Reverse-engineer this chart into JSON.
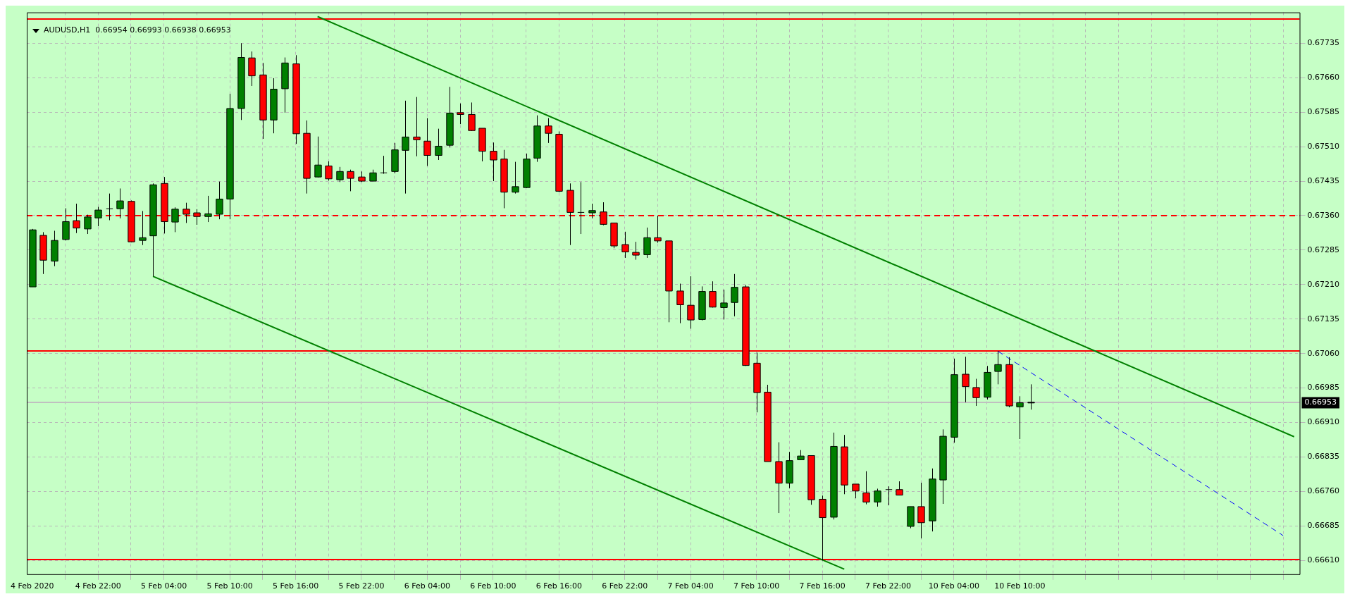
{
  "chart_data": {
    "type": "candlestick",
    "title": "AUDUSD,H1  0.66954 0.66993 0.66938 0.66953",
    "categories": [
      "4 Feb 2020",
      null,
      null,
      null,
      null,
      null,
      "4 Feb 22:00",
      null,
      null,
      null,
      null,
      null,
      "5 Feb 04:00",
      null,
      null,
      null,
      null,
      null,
      "5 Feb 10:00",
      null,
      null,
      null,
      null,
      null,
      "5 Feb 16:00",
      null,
      null,
      null,
      null,
      null,
      "5 Feb 22:00",
      null,
      null,
      null,
      null,
      null,
      "6 Feb 04:00",
      null,
      null,
      null,
      null,
      null,
      "6 Feb 10:00",
      null,
      null,
      null,
      null,
      null,
      "6 Feb 16:00",
      null,
      null,
      null,
      null,
      null,
      "6 Feb 22:00",
      null,
      null,
      null,
      null,
      null,
      "7 Feb 04:00",
      null,
      null,
      null,
      null,
      null,
      "7 Feb 10:00",
      null,
      null,
      null,
      null,
      null,
      "7 Feb 16:00",
      null,
      null,
      null,
      null,
      null,
      "7 Feb 22:00",
      null,
      null,
      null,
      null,
      null,
      "10 Feb 04:00",
      null,
      null,
      null,
      null,
      null,
      "10 Feb 10:00",
      null,
      null,
      null,
      null,
      null,
      null,
      null,
      null,
      null,
      null,
      null,
      null,
      null,
      null,
      null,
      null,
      null,
      null,
      null,
      null,
      null,
      null,
      null,
      null,
      null
    ],
    "colors": [
      "#008000",
      "#ff0000",
      "#008000",
      "#008000",
      "#ff0000",
      "#008000",
      "#008000",
      "#000000",
      "#008000",
      "#ff0000",
      "#008000",
      "#008000",
      "#ff0000",
      "#008000",
      "#ff0000",
      "#ff0000",
      "#008000",
      "#008000",
      "#008000",
      "#008000",
      "#ff0000",
      "#ff0000",
      "#008000",
      "#008000",
      "#ff0000",
      "#ff0000",
      "#008000",
      "#ff0000",
      "#008000",
      "#ff0000",
      "#ff0000",
      "#008000",
      "#000000",
      "#008000",
      "#008000",
      "#ff0000",
      "#ff0000",
      "#008000",
      "#008000",
      "#ff0000",
      "#ff0000",
      "#ff0000",
      "#ff0000",
      "#ff0000",
      "#008000",
      "#008000",
      "#008000",
      "#ff0000",
      "#ff0000",
      "#ff0000",
      "#000000",
      "#008000",
      "#ff0000",
      "#ff0000",
      "#ff0000",
      "#ff0000",
      "#008000",
      "#ff0000",
      "#ff0000",
      "#ff0000",
      "#ff0000",
      "#008000",
      "#ff0000",
      "#008000",
      "#008000",
      "#ff0000",
      "#ff0000",
      "#ff0000",
      "#ff0000",
      "#008000",
      "#008000",
      "#ff0000",
      "#ff0000",
      "#008000",
      "#ff0000",
      "#ff0000",
      "#ff0000",
      "#008000",
      "#000000",
      "#ff0000",
      "#008000",
      "#ff0000",
      "#008000",
      "#008000",
      "#008000",
      "#ff0000",
      "#ff0000",
      "#008000",
      "#008000",
      "#ff0000",
      "#008000",
      "#000000",
      null,
      null,
      null,
      null,
      null,
      null,
      null,
      null,
      null,
      null,
      null,
      null,
      null,
      null,
      null,
      null,
      null,
      null,
      null,
      null,
      null,
      null,
      null,
      null
    ],
    "ohlc": [
      [
        0.67205,
        0.67331,
        0.67205,
        0.67329
      ],
      [
        0.67317,
        0.67324,
        0.67233,
        0.67263
      ],
      [
        0.67261,
        0.67327,
        0.6725,
        0.67306
      ],
      [
        0.67308,
        0.67376,
        0.67306,
        0.67347
      ],
      [
        0.67349,
        0.67386,
        0.67322,
        0.67333
      ],
      [
        0.67331,
        0.67362,
        0.6732,
        0.67357
      ],
      [
        0.67355,
        0.67379,
        0.67337,
        0.67372
      ],
      [
        0.67375,
        0.67408,
        0.6735,
        0.67375
      ],
      [
        0.67375,
        0.67419,
        0.67354,
        0.67392
      ],
      [
        0.67391,
        0.67393,
        0.67302,
        0.67303
      ],
      [
        0.67306,
        0.6737,
        0.67296,
        0.67312
      ],
      [
        0.67316,
        0.6743,
        0.67228,
        0.67427
      ],
      [
        0.6743,
        0.67444,
        0.67321,
        0.67347
      ],
      [
        0.67346,
        0.67378,
        0.67324,
        0.67374
      ],
      [
        0.67374,
        0.67388,
        0.67344,
        0.67363
      ],
      [
        0.67366,
        0.67374,
        0.6734,
        0.67358
      ],
      [
        0.67358,
        0.67403,
        0.67346,
        0.67364
      ],
      [
        0.67363,
        0.67434,
        0.67352,
        0.67396
      ],
      [
        0.67396,
        0.67625,
        0.67352,
        0.67593
      ],
      [
        0.67593,
        0.67735,
        0.67568,
        0.67704
      ],
      [
        0.67703,
        0.67717,
        0.67642,
        0.67664
      ],
      [
        0.67666,
        0.67692,
        0.67527,
        0.67568
      ],
      [
        0.67568,
        0.67659,
        0.67539,
        0.67635
      ],
      [
        0.67636,
        0.67704,
        0.67584,
        0.67692
      ],
      [
        0.6769,
        0.67709,
        0.67516,
        0.67538
      ],
      [
        0.67539,
        0.67567,
        0.67408,
        0.67441
      ],
      [
        0.67444,
        0.67532,
        0.67443,
        0.6747
      ],
      [
        0.67468,
        0.67478,
        0.67436,
        0.6744
      ],
      [
        0.67438,
        0.67466,
        0.67433,
        0.67456
      ],
      [
        0.67456,
        0.6746,
        0.67413,
        0.67441
      ],
      [
        0.67444,
        0.67456,
        0.67433,
        0.67435
      ],
      [
        0.67435,
        0.6746,
        0.67435,
        0.67453
      ],
      [
        0.67453,
        0.6749,
        0.67451,
        0.67453
      ],
      [
        0.67456,
        0.67518,
        0.67452,
        0.67503
      ],
      [
        0.67502,
        0.6761,
        0.67408,
        0.67531
      ],
      [
        0.67531,
        0.67618,
        0.67489,
        0.67525
      ],
      [
        0.67522,
        0.67572,
        0.67468,
        0.67491
      ],
      [
        0.67491,
        0.67549,
        0.67481,
        0.67511
      ],
      [
        0.67513,
        0.6764,
        0.67508,
        0.67583
      ],
      [
        0.67584,
        0.67604,
        0.67559,
        0.6758
      ],
      [
        0.6758,
        0.67606,
        0.67544,
        0.67545
      ],
      [
        0.6755,
        0.6755,
        0.67478,
        0.675
      ],
      [
        0.675,
        0.67519,
        0.67435,
        0.67481
      ],
      [
        0.67483,
        0.67503,
        0.67376,
        0.67411
      ],
      [
        0.67411,
        0.67477,
        0.67408,
        0.67423
      ],
      [
        0.67421,
        0.67495,
        0.6742,
        0.67483
      ],
      [
        0.67485,
        0.67578,
        0.67477,
        0.67555
      ],
      [
        0.67555,
        0.67572,
        0.67518,
        0.67539
      ],
      [
        0.67537,
        0.67543,
        0.67411,
        0.67413
      ],
      [
        0.67415,
        0.6743,
        0.67296,
        0.67367
      ],
      [
        0.67367,
        0.67433,
        0.6732,
        0.67367
      ],
      [
        0.67366,
        0.67386,
        0.67354,
        0.67371
      ],
      [
        0.67368,
        0.67389,
        0.67339,
        0.67341
      ],
      [
        0.67344,
        0.67344,
        0.67289,
        0.67294
      ],
      [
        0.67297,
        0.67325,
        0.67268,
        0.67281
      ],
      [
        0.6728,
        0.67303,
        0.67264,
        0.67274
      ],
      [
        0.67275,
        0.67334,
        0.67268,
        0.67312
      ],
      [
        0.67312,
        0.6736,
        0.67301,
        0.67305
      ],
      [
        0.67305,
        0.67305,
        0.67128,
        0.67196
      ],
      [
        0.67196,
        0.67212,
        0.67126,
        0.67166
      ],
      [
        0.67165,
        0.67228,
        0.67114,
        0.67133
      ],
      [
        0.67134,
        0.67206,
        0.67132,
        0.67195
      ],
      [
        0.67195,
        0.67217,
        0.6716,
        0.67161
      ],
      [
        0.6716,
        0.67199,
        0.67134,
        0.6717
      ],
      [
        0.67171,
        0.67233,
        0.67141,
        0.67204
      ],
      [
        0.67205,
        0.67209,
        0.67033,
        0.67034
      ],
      [
        0.67039,
        0.67062,
        0.66932,
        0.66975
      ],
      [
        0.66976,
        0.66992,
        0.66825,
        0.66825
      ],
      [
        0.66825,
        0.66867,
        0.66713,
        0.66778
      ],
      [
        0.66778,
        0.66846,
        0.66767,
        0.66827
      ],
      [
        0.66829,
        0.6685,
        0.66829,
        0.66837
      ],
      [
        0.66838,
        0.66838,
        0.66731,
        0.66742
      ],
      [
        0.66743,
        0.66751,
        0.6661,
        0.66703
      ],
      [
        0.66704,
        0.66888,
        0.66699,
        0.66858
      ],
      [
        0.66857,
        0.66883,
        0.66754,
        0.66774
      ],
      [
        0.66776,
        0.66776,
        0.66745,
        0.66761
      ],
      [
        0.66757,
        0.66804,
        0.66732,
        0.66737
      ],
      [
        0.66737,
        0.66766,
        0.66727,
        0.66761
      ],
      [
        0.66764,
        0.66771,
        0.6673,
        0.66764
      ],
      [
        0.66764,
        0.66782,
        0.66752,
        0.66752
      ],
      [
        0.66684,
        0.66727,
        0.6668,
        0.66727
      ],
      [
        0.66727,
        0.66779,
        0.66658,
        0.66692
      ],
      [
        0.66696,
        0.6681,
        0.66673,
        0.66787
      ],
      [
        0.66785,
        0.66895,
        0.66733,
        0.6688
      ],
      [
        0.66878,
        0.67049,
        0.66866,
        0.67014
      ],
      [
        0.67015,
        0.67053,
        0.66954,
        0.66988
      ],
      [
        0.66986,
        0.67005,
        0.66946,
        0.66964
      ],
      [
        0.66965,
        0.67033,
        0.6696,
        0.67019
      ],
      [
        0.67021,
        0.67065,
        0.66993,
        0.67036
      ],
      [
        0.67036,
        0.67052,
        0.66943,
        0.66946
      ],
      [
        0.66944,
        0.66967,
        0.66874,
        0.66953
      ],
      [
        0.66954,
        0.66993,
        0.66938,
        0.66953
      ],
      null,
      null,
      null,
      null,
      null,
      null,
      null,
      null,
      null,
      null,
      null,
      null,
      null,
      null,
      null,
      null,
      null,
      null,
      null,
      null,
      null,
      null,
      null,
      null
    ],
    "series": [
      {
        "type": "line",
        "color": "#008000",
        "values": [
          null,
          null,
          null,
          null,
          null,
          null,
          null,
          null,
          null,
          null,
          null,
          null,
          null,
          null,
          null,
          null,
          null,
          null,
          null,
          null,
          null,
          null,
          null,
          null,
          null,
          null,
          0.67793,
          null,
          null,
          null,
          null,
          null,
          null,
          null,
          null,
          null,
          null,
          null,
          null,
          null,
          null,
          null,
          null,
          null,
          null,
          null,
          null,
          null,
          null,
          null,
          null,
          null,
          null,
          null,
          null,
          null,
          null,
          null,
          null,
          null,
          null,
          null,
          null,
          null,
          null,
          null,
          null,
          null,
          null,
          null,
          null,
          null,
          null,
          null,
          null,
          null,
          null,
          null,
          null,
          null,
          null,
          null,
          null,
          null,
          null,
          null,
          null,
          null,
          null,
          null,
          null,
          null,
          null,
          null,
          null,
          null,
          null,
          null,
          null,
          null,
          null,
          null,
          null,
          null,
          null,
          null,
          null,
          null,
          null,
          null,
          null,
          null,
          null,
          null,
          null,
          0.66879
        ]
      },
      {
        "type": "line",
        "color": "#008000",
        "values": [
          null,
          null,
          null,
          null,
          null,
          null,
          null,
          null,
          null,
          null,
          null,
          0.67228,
          null,
          null,
          null,
          null,
          null,
          null,
          null,
          null,
          null,
          null,
          null,
          null,
          null,
          null,
          null,
          null,
          null,
          null,
          null,
          null,
          null,
          null,
          null,
          null,
          null,
          null,
          null,
          null,
          null,
          null,
          null,
          null,
          null,
          null,
          null,
          null,
          null,
          null,
          null,
          null,
          null,
          null,
          null,
          null,
          null,
          null,
          null,
          null,
          null,
          null,
          null,
          null,
          null,
          null,
          null,
          null,
          null,
          null,
          null,
          null,
          null,
          null,
          0.66591,
          null,
          null,
          null,
          null,
          null,
          null,
          null,
          null,
          null,
          null,
          null,
          null,
          null,
          null,
          null,
          null,
          null,
          null,
          null,
          null,
          null,
          null,
          null,
          null,
          null,
          null,
          null,
          null,
          null,
          null,
          null,
          null,
          null,
          null,
          null,
          null,
          null,
          null,
          null,
          null,
          null
        ]
      },
      {
        "type": "line",
        "color": "#0000ff",
        "line_style": "dashed",
        "values": [
          null,
          null,
          null,
          null,
          null,
          null,
          null,
          null,
          null,
          null,
          null,
          null,
          null,
          null,
          null,
          null,
          null,
          null,
          null,
          null,
          null,
          null,
          null,
          null,
          null,
          null,
          null,
          null,
          null,
          null,
          null,
          null,
          null,
          null,
          null,
          null,
          null,
          null,
          null,
          null,
          null,
          null,
          null,
          null,
          null,
          null,
          null,
          null,
          null,
          null,
          null,
          null,
          null,
          null,
          null,
          null,
          null,
          null,
          null,
          null,
          null,
          null,
          null,
          null,
          null,
          null,
          null,
          null,
          null,
          null,
          null,
          null,
          null,
          null,
          null,
          null,
          null,
          null,
          null,
          null,
          null,
          null,
          null,
          null,
          null,
          null,
          null,
          null,
          0.67065,
          null,
          null,
          null,
          null,
          null,
          null,
          null,
          null,
          null,
          null,
          null,
          null,
          null,
          null,
          null,
          null,
          null,
          null,
          null,
          null,
          null,
          null,
          null,
          null,
          null,
          0.66664,
          null
        ]
      }
    ],
    "ref_lines": [
      {
        "axis": "y",
        "value": 0.67788,
        "color": "#ff0000"
      },
      {
        "axis": "y",
        "value": 0.6736,
        "color": "#ff0000",
        "line_style": "dashed"
      },
      {
        "axis": "y",
        "value": 0.67065,
        "color": "#ff0000"
      },
      {
        "axis": "y",
        "value": 0.66612,
        "color": "#ff0000"
      },
      {
        "axis": "y",
        "value": 0.66953,
        "color": "#c0c0c0",
        "label": "0.66953"
      }
    ],
    "ylim": [
      0.6658,
      0.67802
    ],
    "yticks": [
      0.67735,
      {
        "value": 0.6766,
        "label": "0.67660"
      },
      0.67585,
      {
        "value": 0.6751,
        "label": "0.67510"
      },
      0.67435,
      {
        "value": 0.6736,
        "label": "0.67360"
      },
      0.67285,
      {
        "value": 0.6721,
        "label": "0.67210"
      },
      0.67135,
      {
        "value": 0.6706,
        "label": "0.67060"
      },
      0.66985,
      {
        "value": 0.6691,
        "label": "0.66910"
      },
      0.66835,
      {
        "value": 0.6676,
        "label": "0.66760"
      },
      0.66685,
      {
        "value": 0.6661,
        "label": "0.66610"
      }
    ],
    "grid": true,
    "legend": false
  }
}
